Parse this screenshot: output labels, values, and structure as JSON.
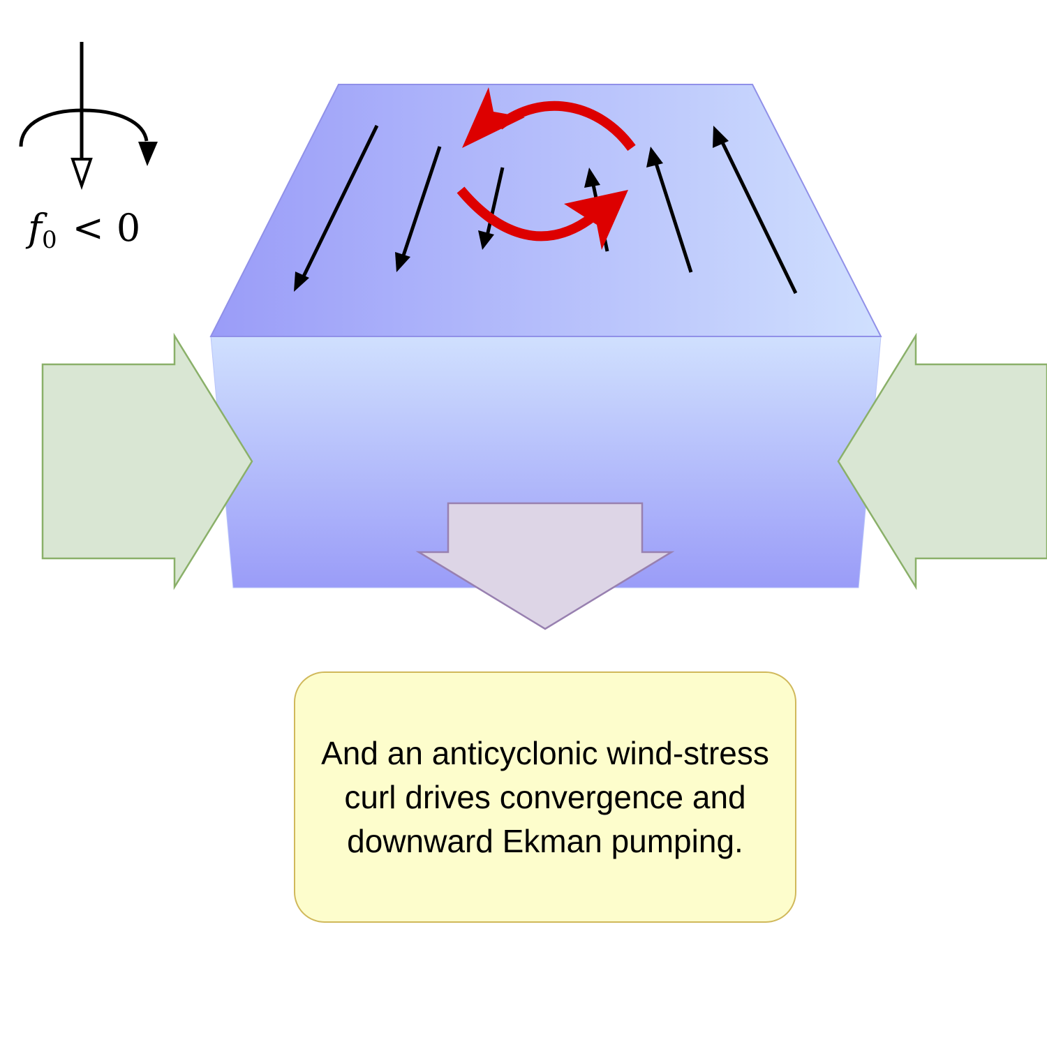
{
  "rotation": {
    "symbol": "f",
    "subscript": "0",
    "relation": "<",
    "value": "0"
  },
  "caption": {
    "text": "And an anticyclonic wind-stress curl drives convergence and downward Ekman pumping."
  },
  "colors": {
    "block_dark": "#9a9cf8",
    "block_light": "#d0e0fe",
    "block_outline": "#9090e8",
    "side_arrow_fill": "#d9e6d3",
    "side_arrow_stroke": "#8ab069",
    "down_arrow_fill": "#ddd5e6",
    "down_arrow_stroke": "#9880b0",
    "curl_arrow": "#dd0000",
    "wind_arrow": "#000000",
    "caption_fill": "#fdfdcc",
    "caption_stroke": "#d0b85a"
  },
  "wind_arrows": [
    {
      "direction": "down-left"
    },
    {
      "direction": "down-left"
    },
    {
      "direction": "down-left"
    },
    {
      "direction": "up-right"
    },
    {
      "direction": "up-left"
    },
    {
      "direction": "up-left"
    }
  ],
  "icons": [
    "rotation-axis-icon",
    "clockwise-rotation-icon",
    "anticyclonic-curl-icon",
    "convergence-arrow-icon",
    "downward-ekman-pumping-arrow-icon"
  ]
}
